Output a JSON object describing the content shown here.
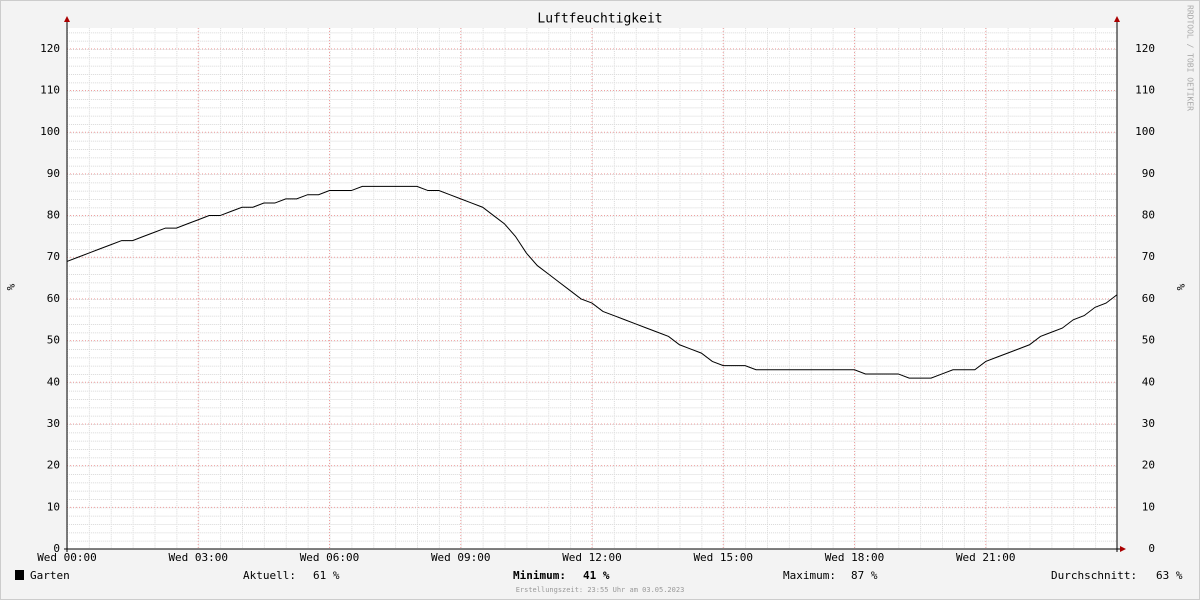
{
  "chart_data": {
    "type": "line",
    "title": "Luftfeuchtigkeit",
    "y_label": "%",
    "watermark": "RRDTOOL / TOBI OETIKER",
    "x": [
      0,
      0.25,
      0.5,
      0.75,
      1,
      1.25,
      1.5,
      1.75,
      2,
      2.25,
      2.5,
      2.75,
      3,
      3.25,
      3.5,
      3.75,
      4,
      4.25,
      4.5,
      4.75,
      5,
      5.25,
      5.5,
      5.75,
      6,
      6.25,
      6.5,
      6.75,
      7,
      7.5,
      8,
      8.25,
      8.5,
      8.75,
      9,
      9.25,
      9.5,
      9.75,
      10,
      10.25,
      10.5,
      10.75,
      11,
      11.25,
      11.5,
      11.75,
      12,
      12.25,
      12.5,
      12.75,
      13,
      13.25,
      13.5,
      13.75,
      14,
      14.25,
      14.5,
      14.75,
      15,
      15.5,
      15.75,
      16,
      17,
      18,
      18.25,
      19,
      19.25,
      19.75,
      20,
      20.25,
      20.75,
      21,
      21.25,
      21.5,
      22,
      22.25,
      22.5,
      22.75,
      23,
      23.25,
      23.5,
      23.75,
      24
    ],
    "series": [
      {
        "name": "Garten",
        "color": "#000000",
        "values": [
          69,
          70,
          71,
          72,
          73,
          74,
          74,
          75,
          76,
          77,
          77,
          78,
          79,
          80,
          80,
          81,
          82,
          82,
          83,
          83,
          84,
          84,
          85,
          85,
          86,
          86,
          86,
          87,
          87,
          87,
          87,
          86,
          86,
          85,
          84,
          83,
          82,
          80,
          78,
          75,
          71,
          68,
          66,
          64,
          62,
          60,
          59,
          57,
          56,
          55,
          54,
          53,
          52,
          51,
          49,
          48,
          47,
          45,
          44,
          44,
          43,
          43,
          43,
          43,
          42,
          42,
          41,
          41,
          42,
          43,
          43,
          45,
          46,
          47,
          49,
          51,
          52,
          53,
          55,
          56,
          58,
          59,
          61
        ]
      }
    ],
    "xlim": [
      0,
      24
    ],
    "ylim": [
      0,
      125
    ],
    "xticks": [
      {
        "value": 0,
        "label": "Wed 00:00"
      },
      {
        "value": 3,
        "label": "Wed 03:00"
      },
      {
        "value": 6,
        "label": "Wed 06:00"
      },
      {
        "value": 9,
        "label": "Wed 09:00"
      },
      {
        "value": 12,
        "label": "Wed 12:00"
      },
      {
        "value": 15,
        "label": "Wed 15:00"
      },
      {
        "value": 18,
        "label": "Wed 18:00"
      },
      {
        "value": 21,
        "label": "Wed 21:00"
      }
    ],
    "yticks": [
      0,
      10,
      20,
      30,
      40,
      50,
      60,
      70,
      80,
      90,
      100,
      110,
      120
    ],
    "grid": true,
    "stats": [
      {
        "label": "Aktuell:",
        "value_label": "61 %"
      },
      {
        "label": "Minimum:",
        "value_label": "41 %"
      },
      {
        "label": "Maximum:",
        "value_label": "87 %"
      },
      {
        "label": "Durchschnitt:",
        "value_label": "63 %"
      }
    ],
    "footer": "Erstellungszeit: 23:55 Uhr am 03.05.2023"
  }
}
